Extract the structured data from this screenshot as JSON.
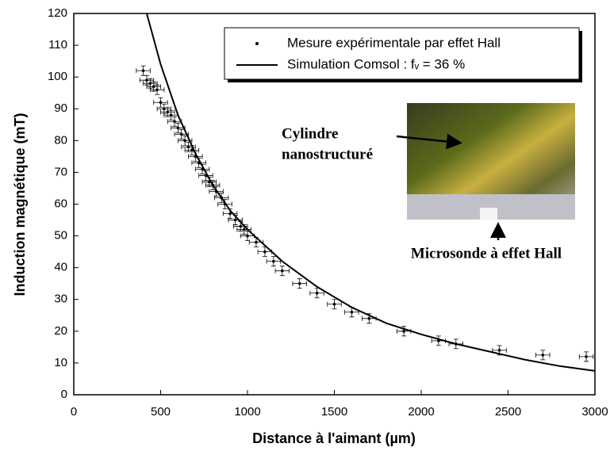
{
  "chart_data": {
    "type": "scatter",
    "x_label": "Distance à l'aimant (µm)",
    "y_label": "Induction magnétique (mT)",
    "xlim": [
      0,
      3000
    ],
    "xticks": [
      0,
      500,
      1000,
      1500,
      2000,
      2500,
      3000
    ],
    "ylim": [
      0,
      120
    ],
    "yticks": [
      0,
      10,
      20,
      30,
      40,
      50,
      60,
      70,
      80,
      90,
      100,
      110,
      120
    ],
    "legend": "upper right",
    "series": [
      {
        "name": "Mesure expérimentale par effet Hall",
        "type": "scatter",
        "color": "#000000",
        "x_error": 40,
        "y_error": 1.5,
        "x": [
          400,
          420,
          440,
          460,
          480,
          500,
          520,
          540,
          560,
          580,
          600,
          620,
          640,
          660,
          680,
          700,
          720,
          740,
          760,
          780,
          800,
          820,
          850,
          870,
          900,
          930,
          960,
          980,
          1000,
          1050,
          1100,
          1150,
          1200,
          1300,
          1400,
          1500,
          1600,
          1700,
          1900,
          2100,
          2200,
          2450,
          2700,
          2950
        ],
        "values": [
          102,
          99,
          98,
          97,
          96,
          92,
          90,
          89,
          88,
          86,
          84,
          82,
          80,
          78,
          77,
          75,
          73,
          71,
          69,
          67,
          66,
          64,
          62,
          60,
          57,
          55,
          53,
          52,
          50,
          48,
          45,
          42,
          39,
          35,
          32,
          28.5,
          26,
          24,
          20,
          17,
          16,
          14,
          12.5,
          12
        ]
      },
      {
        "name": "Simulation Comsol : fᵥ = 36 %",
        "type": "line",
        "color": "#000000",
        "x": [
          420,
          500,
          600,
          700,
          800,
          900,
          1000,
          1200,
          1400,
          1600,
          1800,
          2000,
          2200,
          2400,
          2600,
          2800,
          3000
        ],
        "values": [
          120,
          104,
          88,
          76,
          66,
          58,
          52,
          42,
          34,
          27.5,
          22.5,
          19,
          16,
          13.5,
          11,
          9,
          7.5
        ]
      }
    ],
    "annotations": [
      "Cylindre",
      "nanostructuré",
      "Microsonde à effet Hall"
    ]
  }
}
